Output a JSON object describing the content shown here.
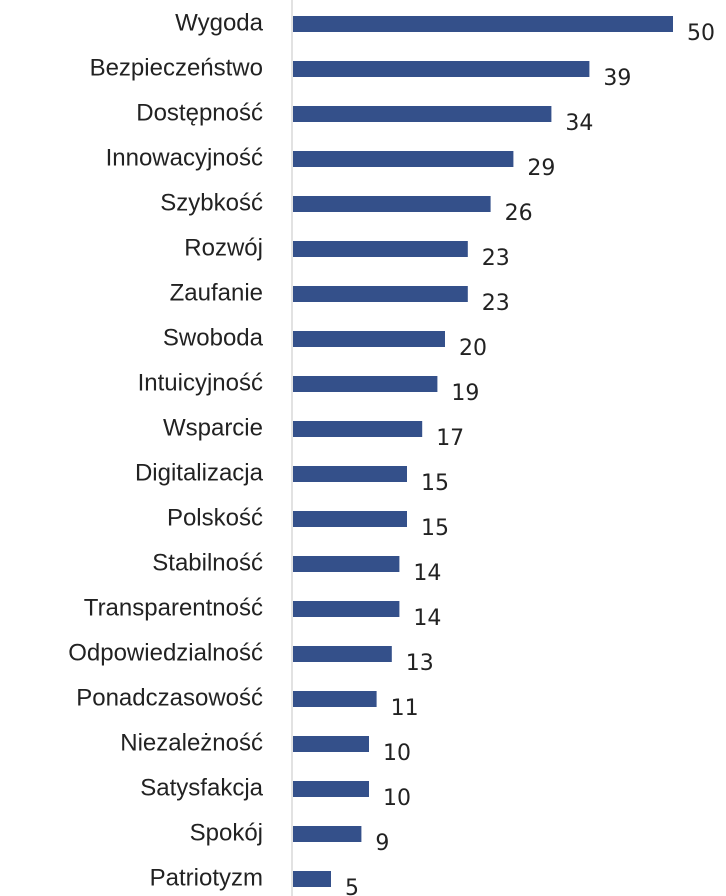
{
  "chart_data": {
    "type": "bar",
    "orientation": "horizontal",
    "color": "#34508a",
    "categories": [
      "Wygoda",
      "Bezpieczeństwo",
      "Dostępność",
      "Innowacyjność",
      "Szybkość",
      "Rozwój",
      "Zaufanie",
      "Swoboda",
      "Intuicyjność",
      "Wsparcie",
      "Digitalizacja",
      "Polskość",
      "Stabilność",
      "Transparentność",
      "Odpowiedzialność",
      "Ponadczasowość",
      "Niezależność",
      "Satysfakcja",
      "Spokój",
      "Patriotyzm"
    ],
    "values": [
      50,
      39,
      34,
      29,
      26,
      23,
      23,
      20,
      19,
      17,
      15,
      15,
      14,
      14,
      13,
      11,
      10,
      10,
      9,
      5
    ]
  }
}
